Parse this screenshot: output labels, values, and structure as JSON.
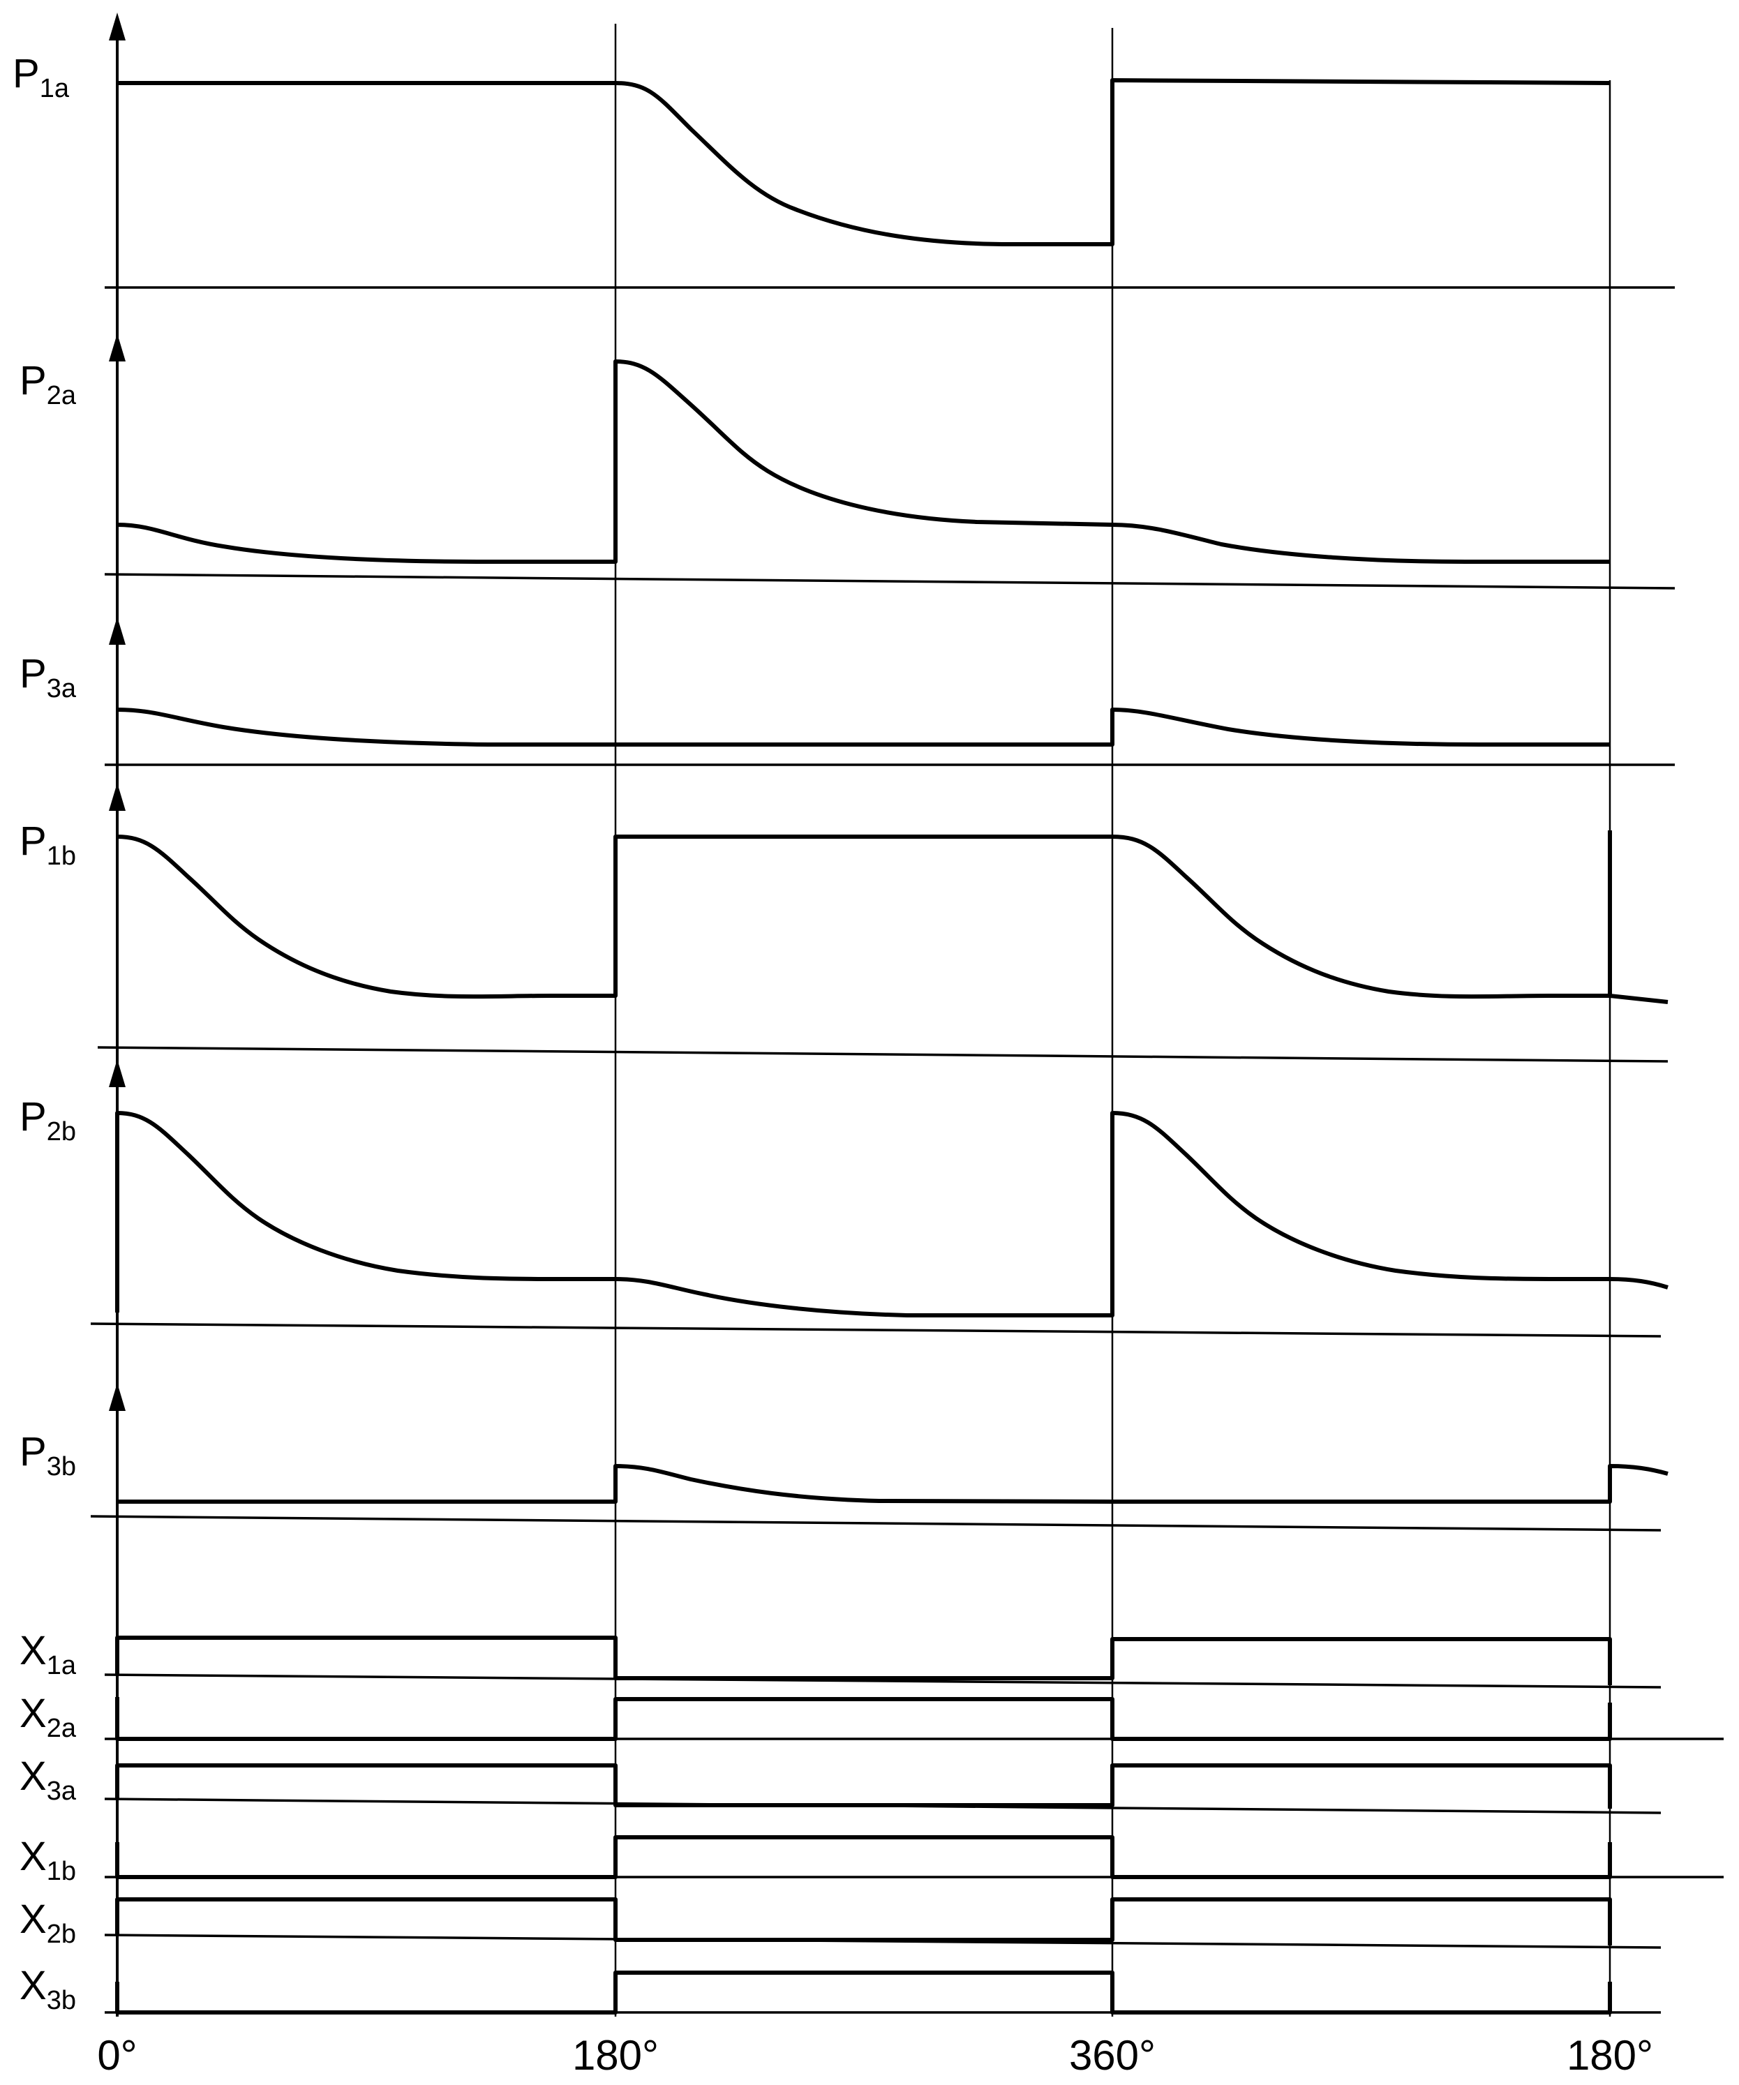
{
  "analog_labels": [
    {
      "id": "p1a",
      "main": "P",
      "sub": "1a"
    },
    {
      "id": "p2a",
      "main": "P",
      "sub": "2a"
    },
    {
      "id": "p3a",
      "main": "P",
      "sub": "3a"
    },
    {
      "id": "p1b",
      "main": "P",
      "sub": "1b"
    },
    {
      "id": "p2b",
      "main": "P",
      "sub": "2b"
    },
    {
      "id": "p3b",
      "main": "P",
      "sub": "3b"
    }
  ],
  "digital_labels": [
    {
      "id": "x1a",
      "main": "X",
      "sub": "1a"
    },
    {
      "id": "x2a",
      "main": "X",
      "sub": "2a"
    },
    {
      "id": "x3a",
      "main": "X",
      "sub": "3a"
    },
    {
      "id": "x1b",
      "main": "X",
      "sub": "1b"
    },
    {
      "id": "x2b",
      "main": "X",
      "sub": "2b"
    },
    {
      "id": "x3b",
      "main": "X",
      "sub": "3b"
    }
  ],
  "x_ticks": [
    "0°",
    "180°",
    "360°",
    "180°"
  ]
}
